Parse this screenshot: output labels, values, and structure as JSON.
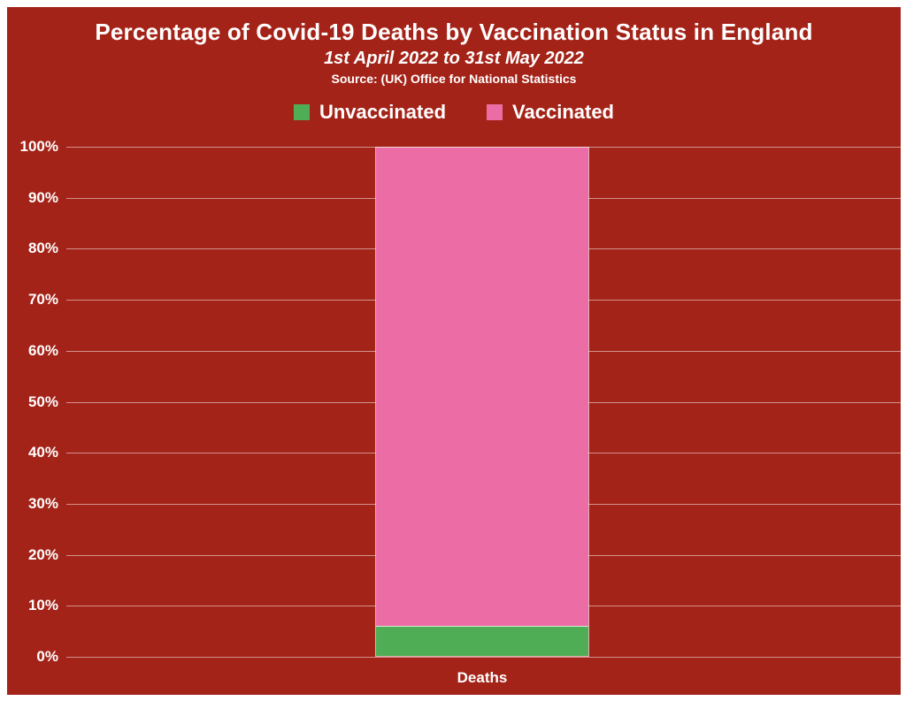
{
  "header": {
    "title": "Percentage of Covid-19 Deaths by Vaccination Status in England",
    "subtitle": "1st April 2022 to 31st May 2022",
    "source": "Source: (UK) Office for National Statistics"
  },
  "colors": {
    "background": "#A42318",
    "unvaccinated_green": "#4FAE55",
    "vaccinated_pink": "#EC6DA5",
    "gridline": "rgba(255,255,255,0.5)",
    "text": "#FFFFFF"
  },
  "chart_data": {
    "type": "bar",
    "stacked": true,
    "categories": [
      "Deaths"
    ],
    "series": [
      {
        "name": "Unvaccinated",
        "values": [
          6
        ],
        "color": "#4FAE55"
      },
      {
        "name": "Vaccinated",
        "values": [
          94
        ],
        "color": "#EC6DA5"
      }
    ],
    "title": "Percentage of Covid-19 Deaths by Vaccination Status in England",
    "subtitle": "1st April 2022 to 31st May 2022",
    "source_note": "Source: (UK) Office for National Statistics",
    "xlabel": "Deaths",
    "ylabel": "",
    "ylim": [
      0,
      100
    ],
    "yticks": [
      "0%",
      "10%",
      "20%",
      "30%",
      "40%",
      "50%",
      "60%",
      "70%",
      "80%",
      "90%",
      "100%"
    ],
    "ytick_values": [
      0,
      10,
      20,
      30,
      40,
      50,
      60,
      70,
      80,
      90,
      100
    ],
    "grid": true,
    "legend_position": "top"
  }
}
